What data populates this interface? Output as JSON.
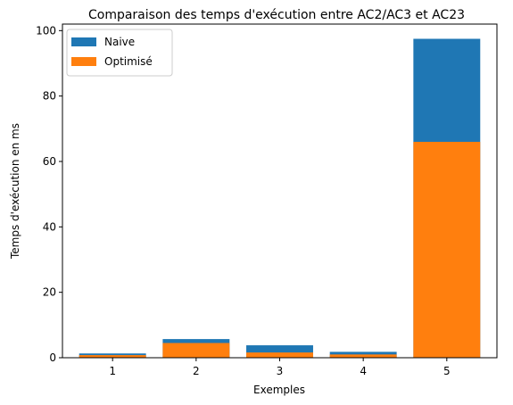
{
  "chart_data": {
    "type": "bar",
    "stacking": "overlay",
    "title": "Comparaison des temps d'exécution entre AC2/AC3 et AC23",
    "xlabel": "Exemples",
    "ylabel": "Temps d'exécution en ms",
    "categories": [
      "1",
      "2",
      "3",
      "4",
      "5"
    ],
    "ylim": [
      0,
      102
    ],
    "yticks": [
      0,
      20,
      40,
      60,
      80,
      100
    ],
    "grid": false,
    "legend_position": "top-left",
    "series": [
      {
        "name": "Naive",
        "color": "#1f77b4",
        "values": [
          1.3,
          5.7,
          3.8,
          1.8,
          97.5
        ]
      },
      {
        "name": "Optimisé",
        "color": "#ff7f0e",
        "values": [
          0.8,
          4.5,
          1.6,
          1.0,
          66.0
        ]
      }
    ]
  }
}
